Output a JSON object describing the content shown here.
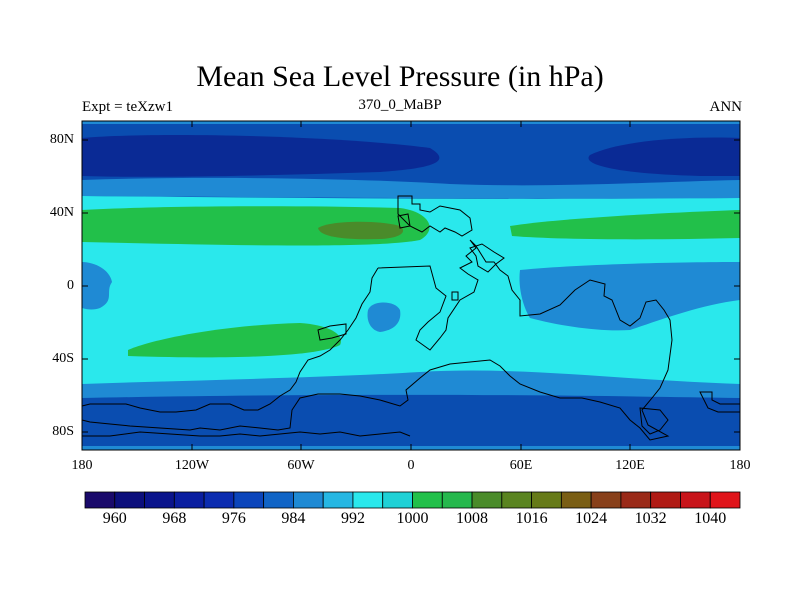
{
  "title": "Mean Sea Level Pressure (in hPa)",
  "subtitle_left": "Expt = teXzw1",
  "subtitle_center": "370_0_MaBP",
  "subtitle_right": "ANN",
  "lat_labels": [
    "80N",
    "40N",
    "0",
    "40S",
    "80S"
  ],
  "lon_labels": [
    "180",
    "120W",
    "60W",
    "0",
    "60E",
    "120E",
    "180"
  ],
  "colorbar": {
    "labels": [
      "960",
      "968",
      "976",
      "984",
      "992",
      "1000",
      "1008",
      "1016",
      "1024",
      "1032",
      "1040"
    ],
    "colors": [
      "#1a0a6b",
      "#0c0f7c",
      "#0a148c",
      "#0a1ea0",
      "#0b2cb0",
      "#0b45bb",
      "#1064c6",
      "#1f8ad4",
      "#26b7e3",
      "#2ae8ec",
      "#1fd1d6",
      "#22c04a",
      "#26b84d",
      "#4a8b2a",
      "#5a8420",
      "#667a18",
      "#7a5e14",
      "#88401a",
      "#9a2a18",
      "#b01a14",
      "#c8141a",
      "#e0141a"
    ],
    "colors_used": [
      "#0a2a95",
      "#0a4db0",
      "#1f8ad4",
      "#2ae8ec",
      "#22c04a",
      "#4a8b2a"
    ]
  }
}
